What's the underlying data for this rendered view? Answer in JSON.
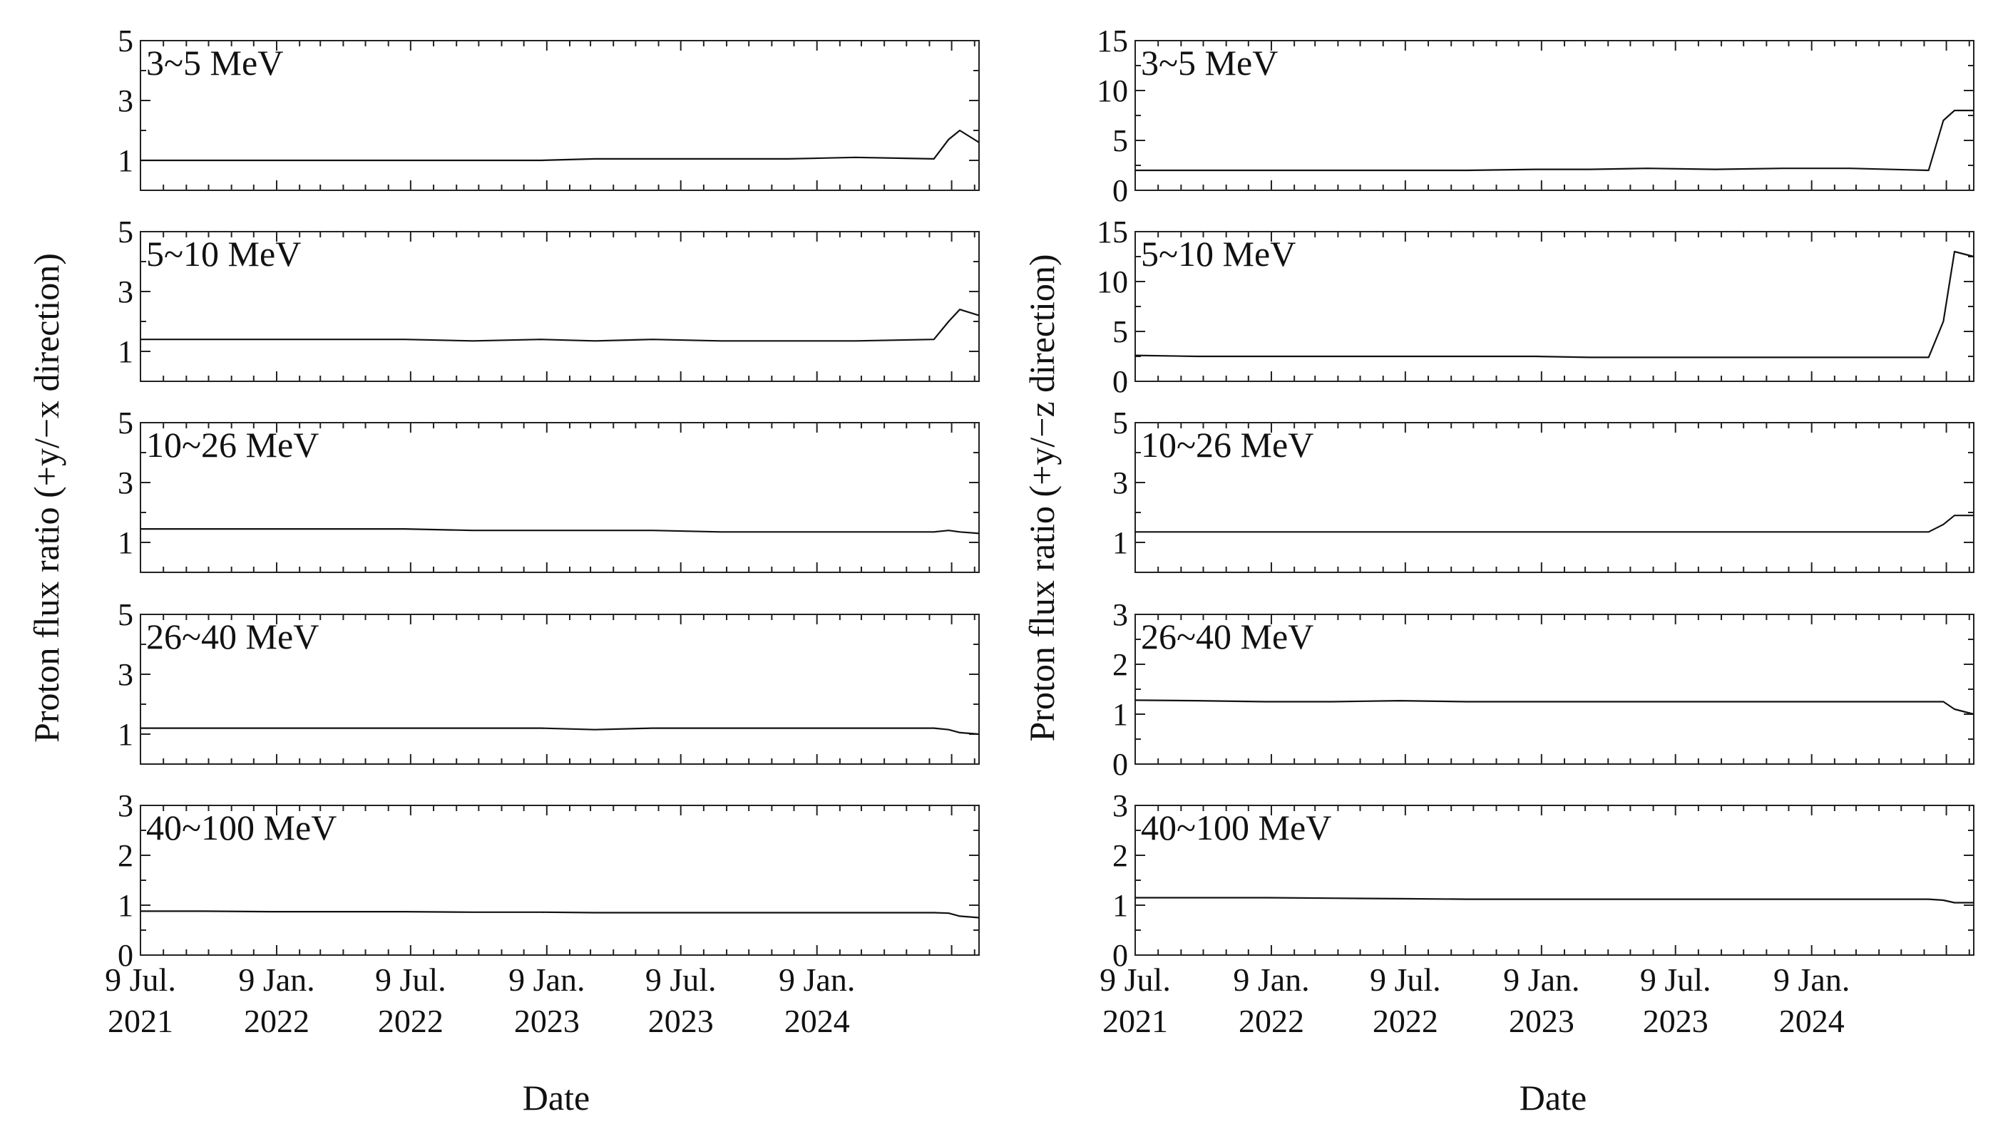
{
  "chart_data": [
    {
      "type": "line",
      "ylabel": "Proton flux ratio (+y/−x direction)",
      "xlabel": "Date",
      "x_range": [
        "2021-07-09",
        "2024-08-15"
      ],
      "x_ticks": [
        {
          "date": "2021-07-09",
          "line1": "9 Jul.",
          "line2": "2021"
        },
        {
          "date": "2022-01-09",
          "line1": "9 Jan.",
          "line2": "2022"
        },
        {
          "date": "2022-07-09",
          "line1": "9 Jul.",
          "line2": "2022"
        },
        {
          "date": "2023-01-09",
          "line1": "9 Jan.",
          "line2": "2023"
        },
        {
          "date": "2023-07-09",
          "line1": "9 Jul.",
          "line2": "2023"
        },
        {
          "date": "2024-01-09",
          "line1": "9 Jan.",
          "line2": "2024"
        }
      ],
      "grid": false,
      "panels": [
        {
          "label": "3~5 MeV",
          "ylim": [
            0,
            5
          ],
          "yticks": [
            1,
            3,
            5
          ],
          "series": [
            {
              "x": [
                "2021-07-09",
                "2021-10-01",
                "2022-01-01",
                "2022-04-01",
                "2022-07-01",
                "2022-10-01",
                "2023-01-01",
                "2023-03-15",
                "2023-06-01",
                "2023-09-01",
                "2023-12-01",
                "2024-03-01",
                "2024-06-15",
                "2024-07-05",
                "2024-07-20",
                "2024-08-15"
              ],
              "y": [
                1.0,
                1.0,
                1.0,
                1.0,
                1.0,
                1.0,
                1.0,
                1.05,
                1.05,
                1.05,
                1.05,
                1.1,
                1.05,
                1.7,
                2.0,
                1.6
              ]
            }
          ]
        },
        {
          "label": "5~10 MeV",
          "ylim": [
            0,
            5
          ],
          "yticks": [
            1,
            3,
            5
          ],
          "series": [
            {
              "x": [
                "2021-07-09",
                "2021-10-01",
                "2022-01-01",
                "2022-04-01",
                "2022-07-01",
                "2022-10-01",
                "2023-01-01",
                "2023-03-15",
                "2023-06-01",
                "2023-09-01",
                "2023-12-01",
                "2024-03-01",
                "2024-06-15",
                "2024-07-05",
                "2024-07-20",
                "2024-08-15"
              ],
              "y": [
                1.4,
                1.4,
                1.4,
                1.4,
                1.4,
                1.35,
                1.4,
                1.35,
                1.4,
                1.35,
                1.35,
                1.35,
                1.4,
                2.0,
                2.4,
                2.2
              ]
            }
          ]
        },
        {
          "label": "10~26 MeV",
          "ylim": [
            0,
            5
          ],
          "yticks": [
            1,
            3,
            5
          ],
          "series": [
            {
              "x": [
                "2021-07-09",
                "2021-10-01",
                "2022-01-01",
                "2022-04-01",
                "2022-07-01",
                "2022-10-01",
                "2023-01-01",
                "2023-03-15",
                "2023-06-01",
                "2023-09-01",
                "2023-12-01",
                "2024-03-01",
                "2024-06-15",
                "2024-07-05",
                "2024-07-20",
                "2024-08-15"
              ],
              "y": [
                1.45,
                1.45,
                1.45,
                1.45,
                1.45,
                1.4,
                1.4,
                1.4,
                1.4,
                1.35,
                1.35,
                1.35,
                1.35,
                1.4,
                1.35,
                1.3
              ]
            }
          ]
        },
        {
          "label": "26~40 MeV",
          "ylim": [
            0,
            5
          ],
          "yticks": [
            1,
            3,
            5
          ],
          "series": [
            {
              "x": [
                "2021-07-09",
                "2021-10-01",
                "2022-01-01",
                "2022-04-01",
                "2022-07-01",
                "2022-10-01",
                "2023-01-01",
                "2023-03-15",
                "2023-06-01",
                "2023-09-01",
                "2023-12-01",
                "2024-03-01",
                "2024-06-15",
                "2024-07-05",
                "2024-07-20",
                "2024-08-15"
              ],
              "y": [
                1.2,
                1.2,
                1.2,
                1.2,
                1.2,
                1.2,
                1.2,
                1.15,
                1.2,
                1.2,
                1.2,
                1.2,
                1.2,
                1.15,
                1.05,
                1.0
              ]
            }
          ]
        },
        {
          "label": "40~100 MeV",
          "ylim": [
            0,
            3
          ],
          "yticks": [
            0,
            1,
            2,
            3
          ],
          "series": [
            {
              "x": [
                "2021-07-09",
                "2021-10-01",
                "2022-01-01",
                "2022-04-01",
                "2022-07-01",
                "2022-10-01",
                "2023-01-01",
                "2023-03-15",
                "2023-06-01",
                "2023-09-01",
                "2023-12-01",
                "2024-03-01",
                "2024-06-15",
                "2024-07-05",
                "2024-07-20",
                "2024-08-15"
              ],
              "y": [
                0.88,
                0.88,
                0.87,
                0.87,
                0.87,
                0.86,
                0.86,
                0.85,
                0.85,
                0.85,
                0.85,
                0.85,
                0.85,
                0.84,
                0.78,
                0.75
              ]
            }
          ]
        }
      ]
    },
    {
      "type": "line",
      "ylabel": "Proton flux ratio (+y/−z direction)",
      "xlabel": "Date",
      "x_range": [
        "2021-07-09",
        "2024-08-15"
      ],
      "x_ticks": [
        {
          "date": "2021-07-09",
          "line1": "9 Jul.",
          "line2": "2021"
        },
        {
          "date": "2022-01-09",
          "line1": "9 Jan.",
          "line2": "2022"
        },
        {
          "date": "2022-07-09",
          "line1": "9 Jul.",
          "line2": "2022"
        },
        {
          "date": "2023-01-09",
          "line1": "9 Jan.",
          "line2": "2023"
        },
        {
          "date": "2023-07-09",
          "line1": "9 Jul.",
          "line2": "2023"
        },
        {
          "date": "2024-01-09",
          "line1": "9 Jan.",
          "line2": "2024"
        }
      ],
      "grid": false,
      "panels": [
        {
          "label": "3~5 MeV",
          "ylim": [
            0,
            15
          ],
          "yticks": [
            0,
            5,
            10,
            15
          ],
          "series": [
            {
              "x": [
                "2021-07-09",
                "2021-10-01",
                "2022-01-01",
                "2022-04-01",
                "2022-07-01",
                "2022-10-01",
                "2023-01-01",
                "2023-03-15",
                "2023-06-01",
                "2023-09-01",
                "2023-12-01",
                "2024-03-01",
                "2024-06-15",
                "2024-07-05",
                "2024-07-20",
                "2024-08-15"
              ],
              "y": [
                2.0,
                2.0,
                2.0,
                2.0,
                2.0,
                2.0,
                2.1,
                2.1,
                2.2,
                2.1,
                2.2,
                2.2,
                2.0,
                7.0,
                8.0,
                8.0
              ]
            }
          ]
        },
        {
          "label": "5~10 MeV",
          "ylim": [
            0,
            15
          ],
          "yticks": [
            0,
            5,
            10,
            15
          ],
          "series": [
            {
              "x": [
                "2021-07-09",
                "2021-10-01",
                "2022-01-01",
                "2022-04-01",
                "2022-07-01",
                "2022-10-01",
                "2023-01-01",
                "2023-03-15",
                "2023-06-01",
                "2023-09-01",
                "2023-12-01",
                "2024-03-01",
                "2024-06-15",
                "2024-07-05",
                "2024-07-20",
                "2024-08-15"
              ],
              "y": [
                2.6,
                2.5,
                2.5,
                2.5,
                2.5,
                2.5,
                2.5,
                2.4,
                2.4,
                2.4,
                2.4,
                2.4,
                2.4,
                6.0,
                13.0,
                12.5
              ]
            }
          ]
        },
        {
          "label": "10~26 MeV",
          "ylim": [
            0,
            5
          ],
          "yticks": [
            1,
            3,
            5
          ],
          "series": [
            {
              "x": [
                "2021-07-09",
                "2021-10-01",
                "2022-01-01",
                "2022-04-01",
                "2022-07-01",
                "2022-10-01",
                "2023-01-01",
                "2023-03-15",
                "2023-06-01",
                "2023-09-01",
                "2023-12-01",
                "2024-03-01",
                "2024-06-15",
                "2024-07-05",
                "2024-07-20",
                "2024-08-15"
              ],
              "y": [
                1.35,
                1.35,
                1.35,
                1.35,
                1.35,
                1.35,
                1.35,
                1.35,
                1.35,
                1.35,
                1.35,
                1.35,
                1.35,
                1.6,
                1.9,
                1.9
              ]
            }
          ]
        },
        {
          "label": "26~40 MeV",
          "ylim": [
            0,
            3
          ],
          "yticks": [
            0,
            1,
            2,
            3
          ],
          "series": [
            {
              "x": [
                "2021-07-09",
                "2021-10-01",
                "2022-01-01",
                "2022-04-01",
                "2022-07-01",
                "2022-10-01",
                "2023-01-01",
                "2023-03-15",
                "2023-06-01",
                "2023-09-01",
                "2023-12-01",
                "2024-03-01",
                "2024-06-15",
                "2024-07-05",
                "2024-07-20",
                "2024-08-15"
              ],
              "y": [
                1.28,
                1.27,
                1.25,
                1.25,
                1.27,
                1.25,
                1.25,
                1.25,
                1.25,
                1.25,
                1.25,
                1.25,
                1.25,
                1.25,
                1.1,
                1.0
              ]
            }
          ]
        },
        {
          "label": "40~100 MeV",
          "ylim": [
            0,
            3
          ],
          "yticks": [
            0,
            1,
            2,
            3
          ],
          "series": [
            {
              "x": [
                "2021-07-09",
                "2021-10-01",
                "2022-01-01",
                "2022-04-01",
                "2022-07-01",
                "2022-10-01",
                "2023-01-01",
                "2023-03-15",
                "2023-06-01",
                "2023-09-01",
                "2023-12-01",
                "2024-03-01",
                "2024-06-15",
                "2024-07-05",
                "2024-07-20",
                "2024-08-15"
              ],
              "y": [
                1.15,
                1.15,
                1.15,
                1.14,
                1.13,
                1.12,
                1.12,
                1.12,
                1.12,
                1.12,
                1.12,
                1.12,
                1.12,
                1.1,
                1.05,
                1.05
              ]
            }
          ]
        }
      ]
    }
  ]
}
